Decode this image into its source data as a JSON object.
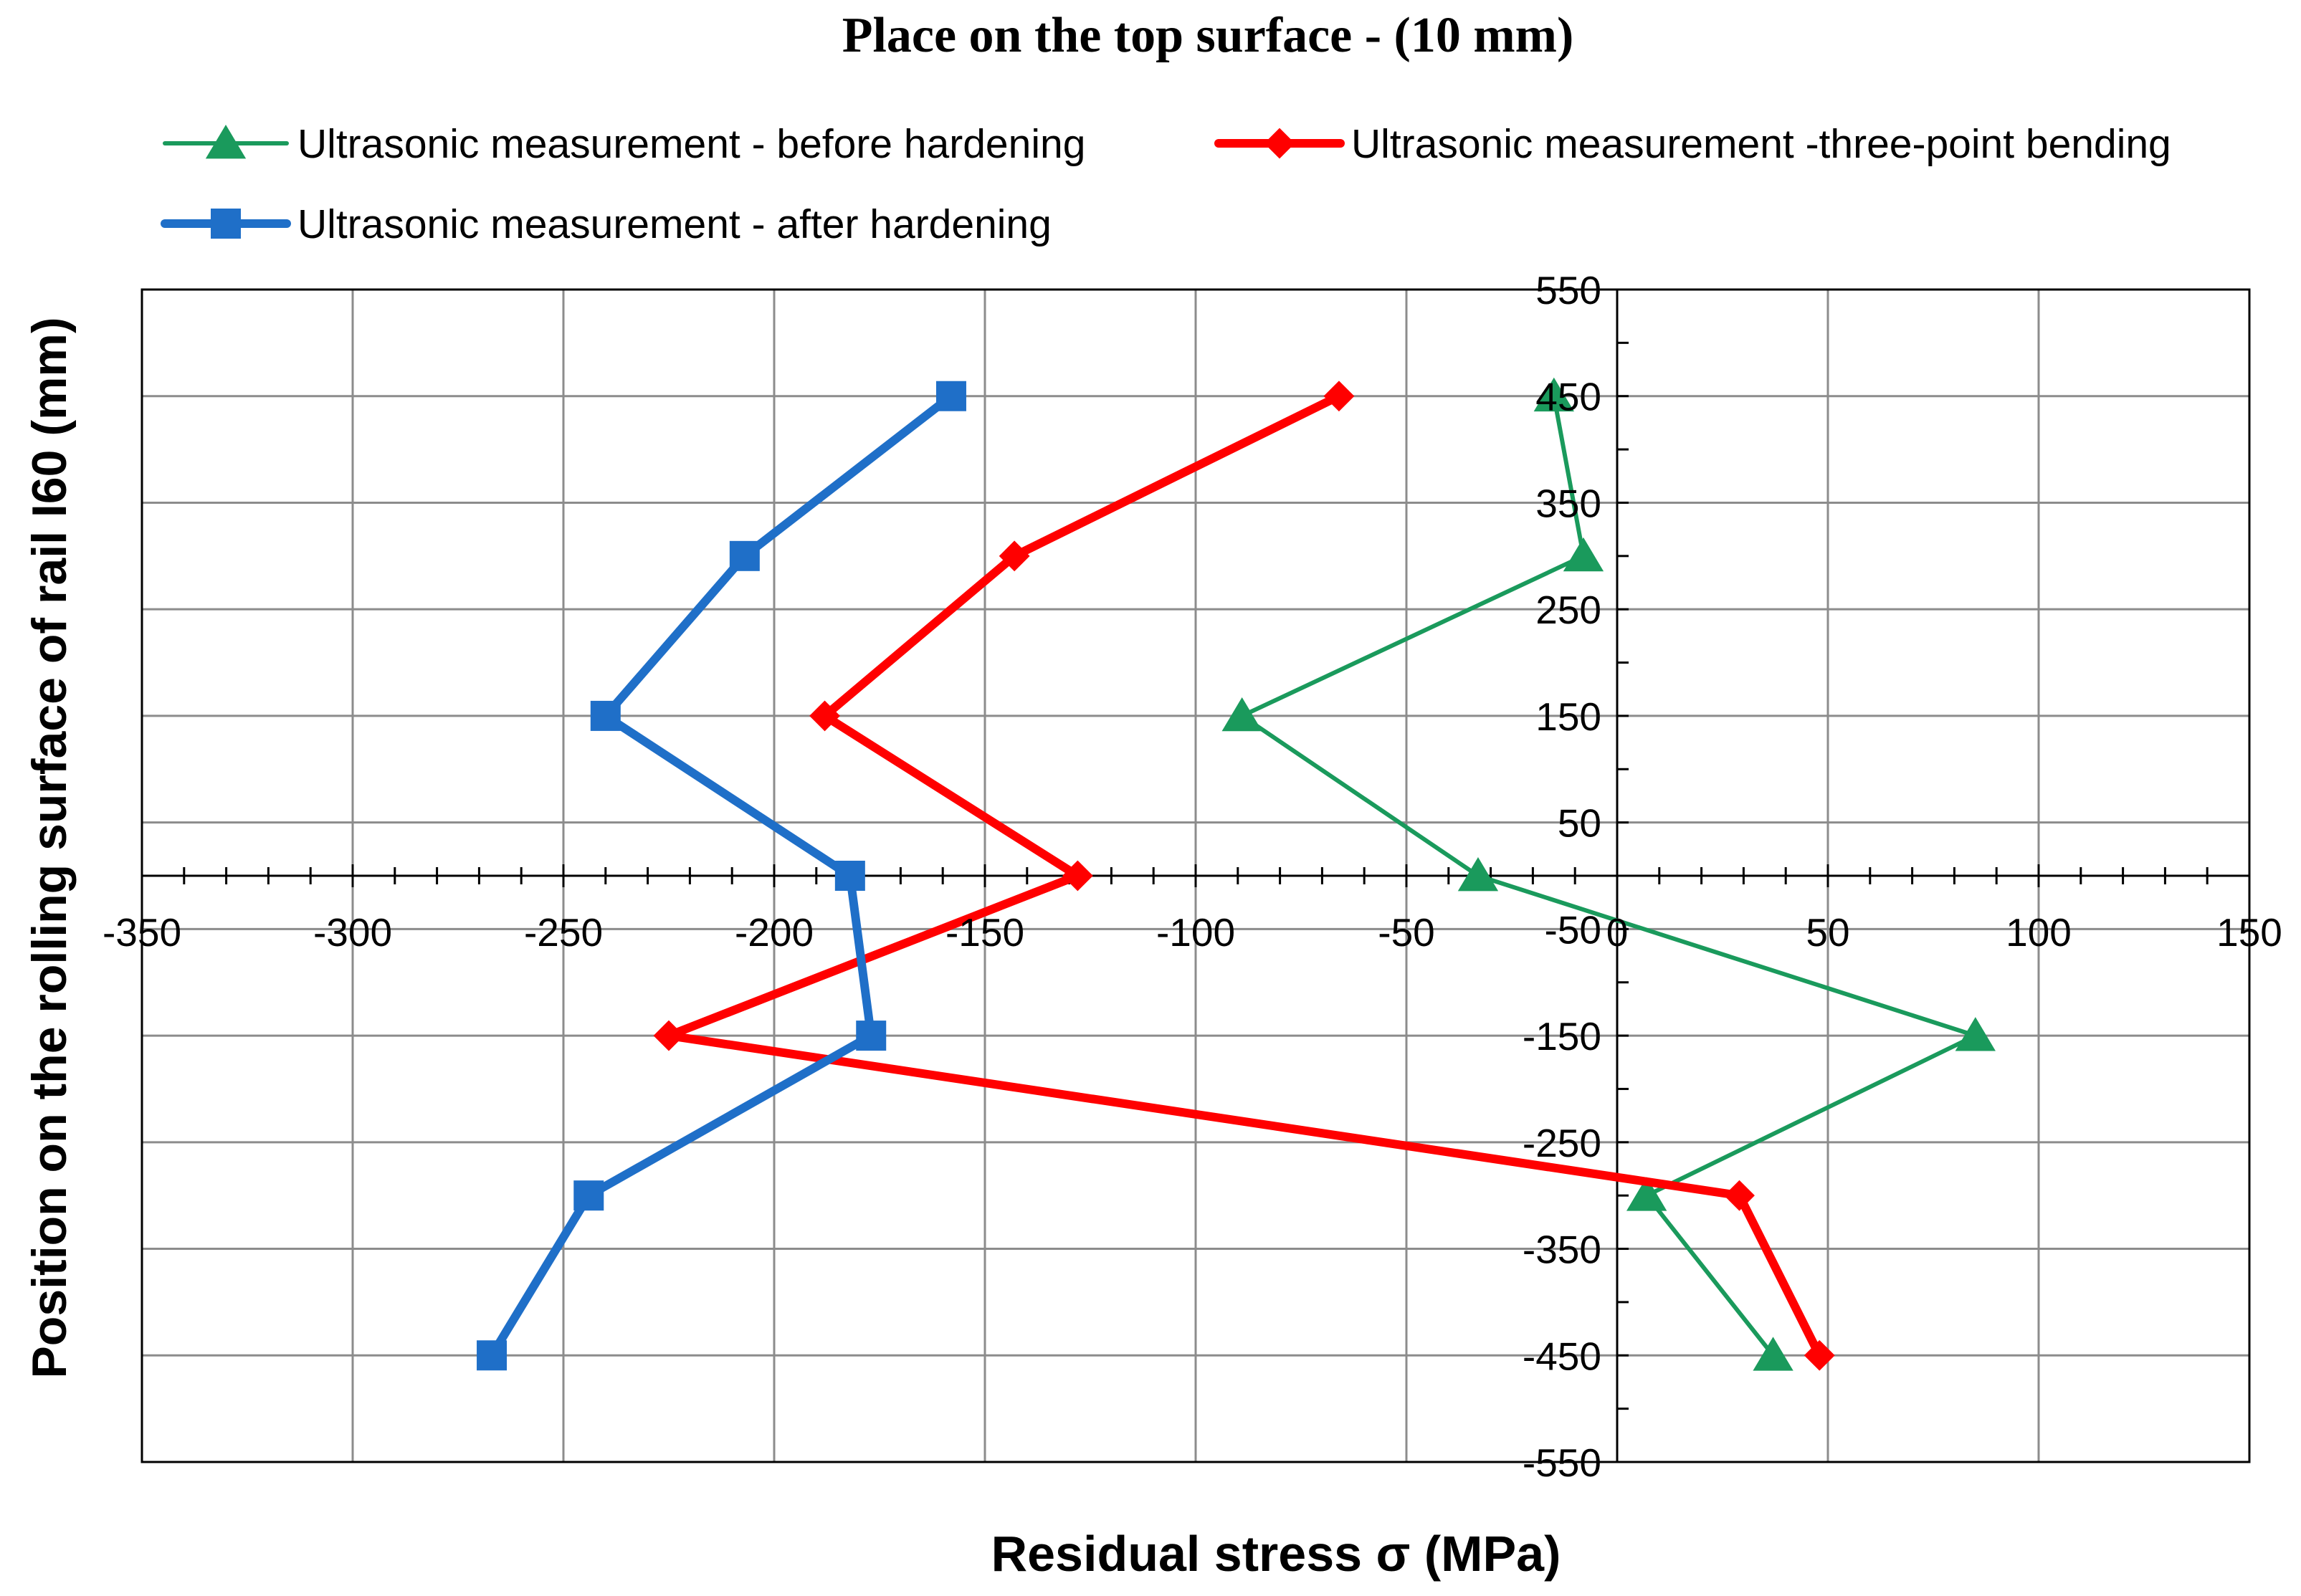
{
  "chart_data": {
    "type": "line",
    "title": "Place on the top surface - (10 mm)",
    "xlabel": "Residual stress  σ (MPa)",
    "ylabel": "Position on the rolling surface of rail I60 (mm)",
    "xlim": [
      -350,
      150
    ],
    "ylim": [
      -550,
      550
    ],
    "x_ticks": [
      "-350",
      "-300",
      "-250",
      "-200",
      "-150",
      "-100",
      "-50",
      "0",
      "50",
      "100",
      "150"
    ],
    "y_ticks": [
      "550",
      "450",
      "350",
      "250",
      "150",
      "50",
      "-50",
      "-150",
      "-250",
      "-350",
      "-450",
      "-550"
    ],
    "grid": true,
    "legend_position": "top",
    "series": [
      {
        "name": "Ultrasonic measurement - before hardening",
        "color": "#1a9a5c",
        "marker": "triangle",
        "points": [
          [
            -15,
            450
          ],
          [
            -8,
            300
          ],
          [
            -89,
            150
          ],
          [
            -33,
            0
          ],
          [
            85,
            -150
          ],
          [
            7,
            -300
          ],
          [
            37,
            -450
          ]
        ]
      },
      {
        "name": "Ultrasonic measurement -three-point bending",
        "color": "#ff0000",
        "marker": "diamond",
        "points": [
          [
            -66,
            450
          ],
          [
            -143,
            300
          ],
          [
            -188,
            150
          ],
          [
            -128,
            0
          ],
          [
            -225,
            -150
          ],
          [
            29,
            -300
          ],
          [
            48,
            -450
          ]
        ]
      },
      {
        "name": "Ultrasonic measurement - after hardening",
        "color": "#1f6fc8",
        "marker": "square",
        "points": [
          [
            -158,
            450
          ],
          [
            -207,
            300
          ],
          [
            -240,
            150
          ],
          [
            -182,
            0
          ],
          [
            -177,
            -150
          ],
          [
            -244,
            -300
          ],
          [
            -267,
            -450
          ]
        ]
      }
    ]
  }
}
